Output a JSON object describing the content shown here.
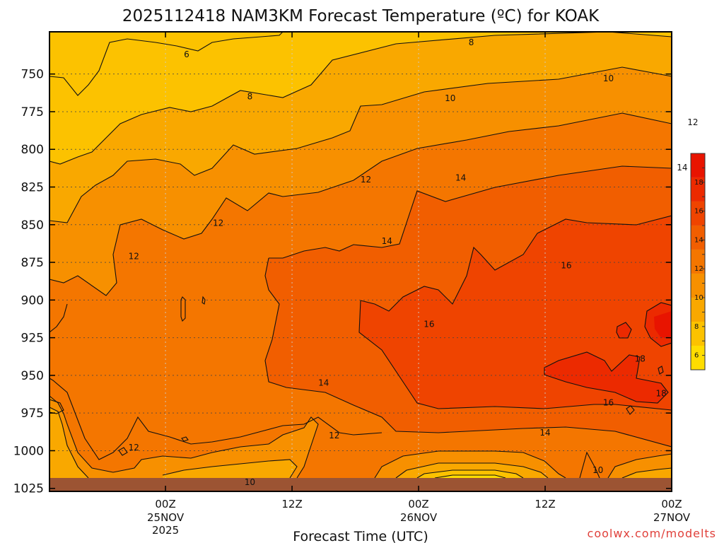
{
  "title": "2025112418 NAM3KM Forecast Temperature (ºC) for KOAK",
  "credit": "coolwx.com/modelts",
  "colors": {
    "bands": [
      "#ffdd00",
      "#fcc200",
      "#f9a800",
      "#f79000",
      "#f47600",
      "#f15e00",
      "#ef4400",
      "#ec2a00",
      "#e81400"
    ],
    "ground": "#9c5433",
    "contour": "#111111"
  },
  "chart_data": {
    "type": "heatmap",
    "title": "2025112418 NAM3KM Forecast Temperature (ºC) for KOAK",
    "xlabel": "Forecast Time (UTC)",
    "ylabel": "",
    "y_axis": {
      "ticks": [
        750,
        775,
        800,
        825,
        850,
        875,
        900,
        925,
        950,
        975,
        1000,
        1025
      ],
      "range_hpa": [
        722,
        1027
      ]
    },
    "x_axis": {
      "range_hours_from_init": [
        -5,
        54
      ],
      "ticks": [
        {
          "hour": 6,
          "label": "00Z",
          "sub1": "25NOV",
          "sub2": "2025"
        },
        {
          "hour": 18,
          "label": "12Z",
          "sub1": "",
          "sub2": ""
        },
        {
          "hour": 30,
          "label": "00Z",
          "sub1": "26NOV",
          "sub2": ""
        },
        {
          "hour": 42,
          "label": "12Z",
          "sub1": "",
          "sub2": ""
        },
        {
          "hour": 54,
          "label": "00Z",
          "sub1": "27NOV",
          "sub2": ""
        }
      ]
    },
    "colorbar": {
      "labels": [
        "6",
        "8",
        "10",
        "12",
        "14",
        "16",
        "18"
      ],
      "levels_degC": [
        5,
        6,
        7,
        8,
        9,
        10,
        11,
        12,
        13,
        14,
        15,
        16,
        17,
        18,
        19,
        20
      ]
    },
    "contour_interval_degC": 2,
    "contour_labels": [
      {
        "text": "6",
        "hour": 8,
        "hpa": 737
      },
      {
        "text": "8",
        "hour": 14,
        "hpa": 765
      },
      {
        "text": "8",
        "hour": 35,
        "hpa": 729
      },
      {
        "text": "10",
        "hour": 33,
        "hpa": 766
      },
      {
        "text": "10",
        "hour": 48,
        "hpa": 753
      },
      {
        "text": "12",
        "hour": 56,
        "hpa": 782
      },
      {
        "text": "14",
        "hour": 55,
        "hpa": 812
      },
      {
        "text": "12",
        "hour": 25,
        "hpa": 820
      },
      {
        "text": "14",
        "hour": 34,
        "hpa": 819
      },
      {
        "text": "12",
        "hour": 11,
        "hpa": 849
      },
      {
        "text": "14",
        "hour": 27,
        "hpa": 861
      },
      {
        "text": "12",
        "hour": 3,
        "hpa": 871
      },
      {
        "text": "16",
        "hour": 44,
        "hpa": 877
      },
      {
        "text": "16",
        "hour": 31,
        "hpa": 916
      },
      {
        "text": "18",
        "hour": 51,
        "hpa": 939
      },
      {
        "text": "14",
        "hour": 21,
        "hpa": 955
      },
      {
        "text": "18",
        "hour": 53,
        "hpa": 962
      },
      {
        "text": "16",
        "hour": 48,
        "hpa": 968
      },
      {
        "text": "12",
        "hour": 22,
        "hpa": 990
      },
      {
        "text": "14",
        "hour": 42,
        "hpa": 988
      },
      {
        "text": "12",
        "hour": 3,
        "hpa": 998
      },
      {
        "text": "10",
        "hour": 14,
        "hpa": 1021
      },
      {
        "text": "10",
        "hour": 47,
        "hpa": 1013
      }
    ]
  }
}
